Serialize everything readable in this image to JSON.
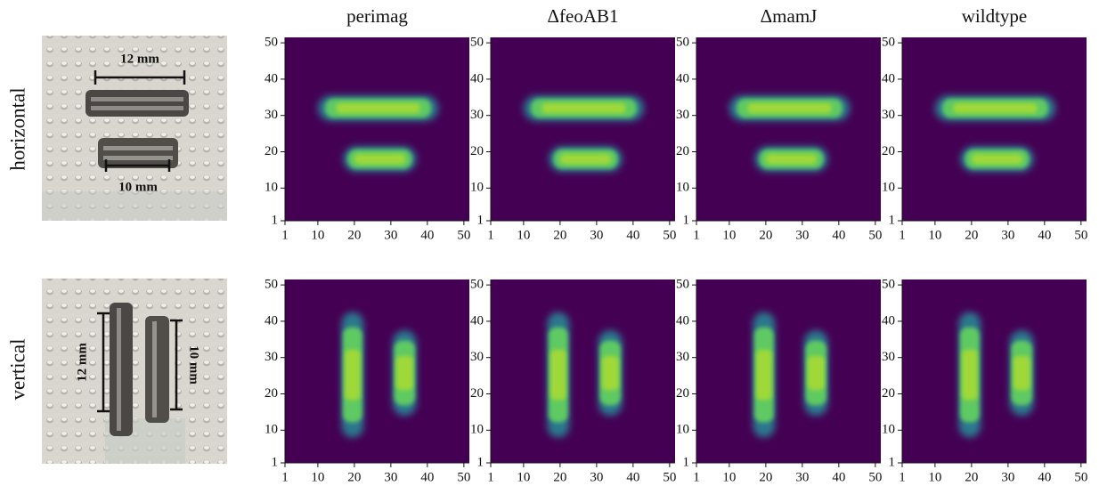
{
  "columns": [
    "perimag",
    "ΔfeoAB1",
    "ΔmamJ",
    "wildtype"
  ],
  "rows": [
    {
      "label": "horizontal",
      "long": "12 mm",
      "short": "10 mm"
    },
    {
      "label": "vertical",
      "long": "12 mm",
      "short": "10 mm"
    }
  ],
  "axis": {
    "lim": [
      1,
      51.5
    ],
    "ticks": [
      1,
      10,
      20,
      30,
      40,
      50
    ]
  }
}
